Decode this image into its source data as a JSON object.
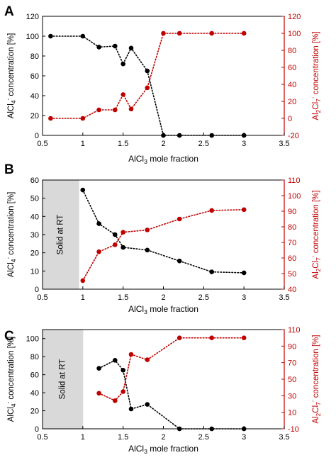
{
  "colors": {
    "left_series": "#000000",
    "right_series": "#c00000",
    "right_axis": "#c00000",
    "shade": "#d9d9d9"
  },
  "chart_data": [
    {
      "type": "scatter",
      "panel_label": "A",
      "xlabel_parts": [
        "AlCl",
        "3",
        " mole fraction"
      ],
      "ylabel_left_parts": [
        "AlCl",
        "4",
        "-",
        " concentration [%]"
      ],
      "ylabel_right_parts": [
        "Al",
        "2",
        "Cl",
        "7",
        "-",
        " concentration [%]"
      ],
      "xlim": [
        0.5,
        3.5
      ],
      "ylim_left": [
        0,
        120
      ],
      "ylim_right": [
        -20,
        120
      ],
      "x_ticks": [
        "0.5",
        "1",
        "1.5",
        "2",
        "2.5",
        "3",
        "3.5"
      ],
      "y_left_ticks": [
        "0",
        "20",
        "40",
        "60",
        "80",
        "100",
        "120"
      ],
      "y_right_ticks": [
        "-20",
        "0",
        "20",
        "40",
        "60",
        "80",
        "100",
        "120"
      ],
      "shaded_region": null,
      "series": [
        {
          "axis": "left",
          "x": [
            0.6,
            1.0,
            1.2,
            1.4,
            1.5,
            1.6,
            1.8,
            2.0,
            2.2,
            2.6,
            3.0
          ],
          "y": [
            100,
            100,
            89,
            90,
            72,
            88,
            65,
            0,
            0,
            0,
            0
          ]
        },
        {
          "axis": "right",
          "x": [
            0.6,
            1.0,
            1.2,
            1.4,
            1.5,
            1.6,
            1.8,
            2.0,
            2.2,
            2.6,
            3.0
          ],
          "y": [
            0,
            0,
            10,
            10,
            28,
            11,
            36,
            100,
            100,
            100,
            100
          ]
        }
      ]
    },
    {
      "type": "scatter",
      "panel_label": "B",
      "xlabel_parts": [
        "AlCl",
        "3",
        " mole fraction"
      ],
      "ylabel_left_parts": [
        "AlCl",
        "4",
        "-",
        " concentration [%]"
      ],
      "ylabel_right_parts": [
        "Al",
        "2",
        "Cl",
        "7",
        "-",
        " concentration [%]"
      ],
      "xlim": [
        0.5,
        3.5
      ],
      "ylim_left": [
        0,
        60
      ],
      "ylim_right": [
        40,
        110
      ],
      "x_ticks": [
        "0.5",
        "1",
        "1.5",
        "2",
        "2.5",
        "3",
        "3.5"
      ],
      "y_left_ticks": [
        "0",
        "10",
        "20",
        "30",
        "40",
        "50",
        "60"
      ],
      "y_right_ticks": [
        "40",
        "50",
        "60",
        "70",
        "80",
        "90",
        "100",
        "110"
      ],
      "shaded_region": {
        "x_from": 0.5,
        "x_to": 0.95,
        "label": "Solid at RT"
      },
      "series": [
        {
          "axis": "left",
          "x": [
            1.0,
            1.2,
            1.4,
            1.5,
            1.8,
            2.2,
            2.6,
            3.0
          ],
          "y": [
            54.5,
            36,
            30,
            23,
            21.5,
            15.5,
            9.5,
            9
          ]
        },
        {
          "axis": "right",
          "x": [
            1.0,
            1.2,
            1.4,
            1.5,
            1.8,
            2.2,
            2.6,
            3.0
          ],
          "y": [
            45.5,
            64,
            68.5,
            76.5,
            78,
            85,
            90.5,
            91
          ]
        }
      ]
    },
    {
      "type": "scatter",
      "panel_label": "C",
      "xlabel_parts": [
        "AlCl",
        "3",
        " mole fraction"
      ],
      "ylabel_left_parts": [
        "AlCl",
        "4",
        "-",
        " concentration [%]"
      ],
      "ylabel_right_parts": [
        "Al",
        "2",
        "Cl",
        "7",
        "-",
        " concentration [%]"
      ],
      "xlim": [
        0.5,
        3.5
      ],
      "ylim_left": [
        0,
        110
      ],
      "ylim_right": [
        -10,
        110
      ],
      "x_ticks": [
        "0.5",
        "1",
        "1.5",
        "2",
        "2.5",
        "3",
        "3.5"
      ],
      "y_left_ticks": [
        "0",
        "20",
        "40",
        "60",
        "80",
        "100"
      ],
      "y_right_ticks": [
        "-10",
        "10",
        "30",
        "50",
        "70",
        "90",
        "110"
      ],
      "shaded_region": {
        "x_from": 0.5,
        "x_to": 1.0,
        "label": "Solid at RT"
      },
      "series": [
        {
          "axis": "left",
          "x": [
            1.2,
            1.4,
            1.5,
            1.6,
            1.8,
            2.2,
            2.6,
            3.0
          ],
          "y": [
            67,
            76,
            65,
            22,
            27,
            0,
            0,
            0
          ]
        },
        {
          "axis": "right",
          "x": [
            1.2,
            1.4,
            1.5,
            1.6,
            1.8,
            2.2,
            2.6,
            3.0
          ],
          "y": [
            33,
            24,
            35,
            80,
            73.5,
            100,
            100,
            100
          ]
        }
      ]
    }
  ]
}
